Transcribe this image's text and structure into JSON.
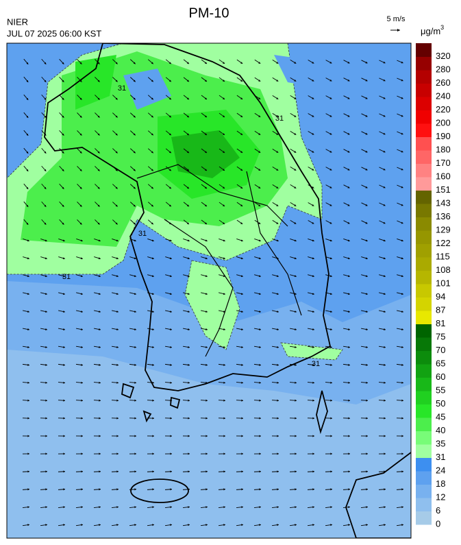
{
  "header": {
    "title": "PM-10",
    "agency": "NIER",
    "timestamp": "JUL 07 2025 06:00 KST",
    "wind_scale": "5 m/s",
    "unit_base": "μg/m",
    "unit_exponent": "3"
  },
  "map": {
    "contour_labels": [
      "31",
      "31",
      "31",
      "31",
      "31"
    ]
  },
  "legend": {
    "levels": [
      {
        "value": 0,
        "color": "#a6cbe8"
      },
      {
        "value": 6,
        "color": "#8fbfee"
      },
      {
        "value": 12,
        "color": "#78b1ef"
      },
      {
        "value": 18,
        "color": "#5ea1ef"
      },
      {
        "value": 24,
        "color": "#3d8ff0"
      },
      {
        "value": 31,
        "color": "#a0ffa0"
      },
      {
        "value": 35,
        "color": "#78fc78"
      },
      {
        "value": 40,
        "color": "#4cee4c"
      },
      {
        "value": 45,
        "color": "#28e628"
      },
      {
        "value": 50,
        "color": "#20d020"
      },
      {
        "value": 55,
        "color": "#18b818"
      },
      {
        "value": 60,
        "color": "#12a212"
      },
      {
        "value": 65,
        "color": "#0c8c0c"
      },
      {
        "value": 70,
        "color": "#077807"
      },
      {
        "value": 75,
        "color": "#006400"
      },
      {
        "value": 81,
        "color": "#e8e800"
      },
      {
        "value": 87,
        "color": "#d4d400"
      },
      {
        "value": 94,
        "color": "#c8c800"
      },
      {
        "value": 101,
        "color": "#b6b600"
      },
      {
        "value": 108,
        "color": "#aaaa00"
      },
      {
        "value": 115,
        "color": "#a0a000"
      },
      {
        "value": 122,
        "color": "#969600"
      },
      {
        "value": 129,
        "color": "#8a8a00"
      },
      {
        "value": 136,
        "color": "#787800"
      },
      {
        "value": 143,
        "color": "#646400"
      },
      {
        "value": 151,
        "color": "#ff9a9a"
      },
      {
        "value": 160,
        "color": "#ff8282"
      },
      {
        "value": 170,
        "color": "#ff6666"
      },
      {
        "value": 180,
        "color": "#ff5050"
      },
      {
        "value": 190,
        "color": "#ff1010"
      },
      {
        "value": 200,
        "color": "#f00000"
      },
      {
        "value": 220,
        "color": "#dc0000"
      },
      {
        "value": 240,
        "color": "#c80000"
      },
      {
        "value": 260,
        "color": "#b40000"
      },
      {
        "value": 280,
        "color": "#960000"
      },
      {
        "value": 320,
        "color": "#640000"
      }
    ]
  }
}
